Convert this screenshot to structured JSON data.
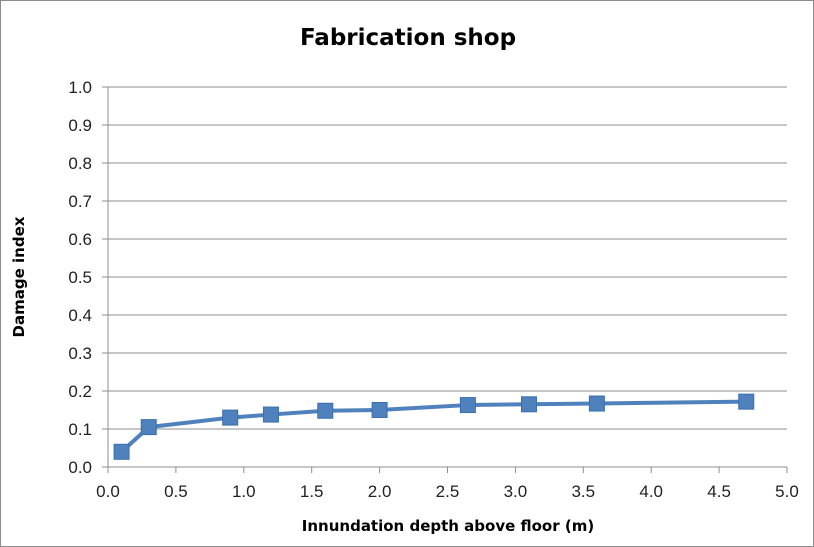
{
  "chart_data": {
    "type": "line",
    "title": "Fabrication shop",
    "xlabel": "Innundation depth above floor (m)",
    "ylabel": "Damage index",
    "xlim": [
      0.0,
      5.0
    ],
    "ylim": [
      0.0,
      1.0
    ],
    "x_ticks": [
      "0.0",
      "0.5",
      "1.0",
      "1.5",
      "2.0",
      "2.5",
      "3.0",
      "3.5",
      "4.0",
      "4.5",
      "5.0"
    ],
    "y_ticks": [
      "0.0",
      "0.1",
      "0.2",
      "0.3",
      "0.4",
      "0.5",
      "0.6",
      "0.7",
      "0.8",
      "0.9",
      "1.0"
    ],
    "grid": "horizontal",
    "legend": "none",
    "series": [
      {
        "marker": "square",
        "color": "#4F81BD",
        "points": [
          {
            "x": 0.1,
            "y": 0.04
          },
          {
            "x": 0.3,
            "y": 0.105
          },
          {
            "x": 0.9,
            "y": 0.13
          },
          {
            "x": 1.2,
            "y": 0.138
          },
          {
            "x": 1.6,
            "y": 0.148
          },
          {
            "x": 2.0,
            "y": 0.15
          },
          {
            "x": 2.65,
            "y": 0.163
          },
          {
            "x": 3.1,
            "y": 0.165
          },
          {
            "x": 3.6,
            "y": 0.167
          },
          {
            "x": 4.7,
            "y": 0.172
          }
        ]
      }
    ]
  }
}
